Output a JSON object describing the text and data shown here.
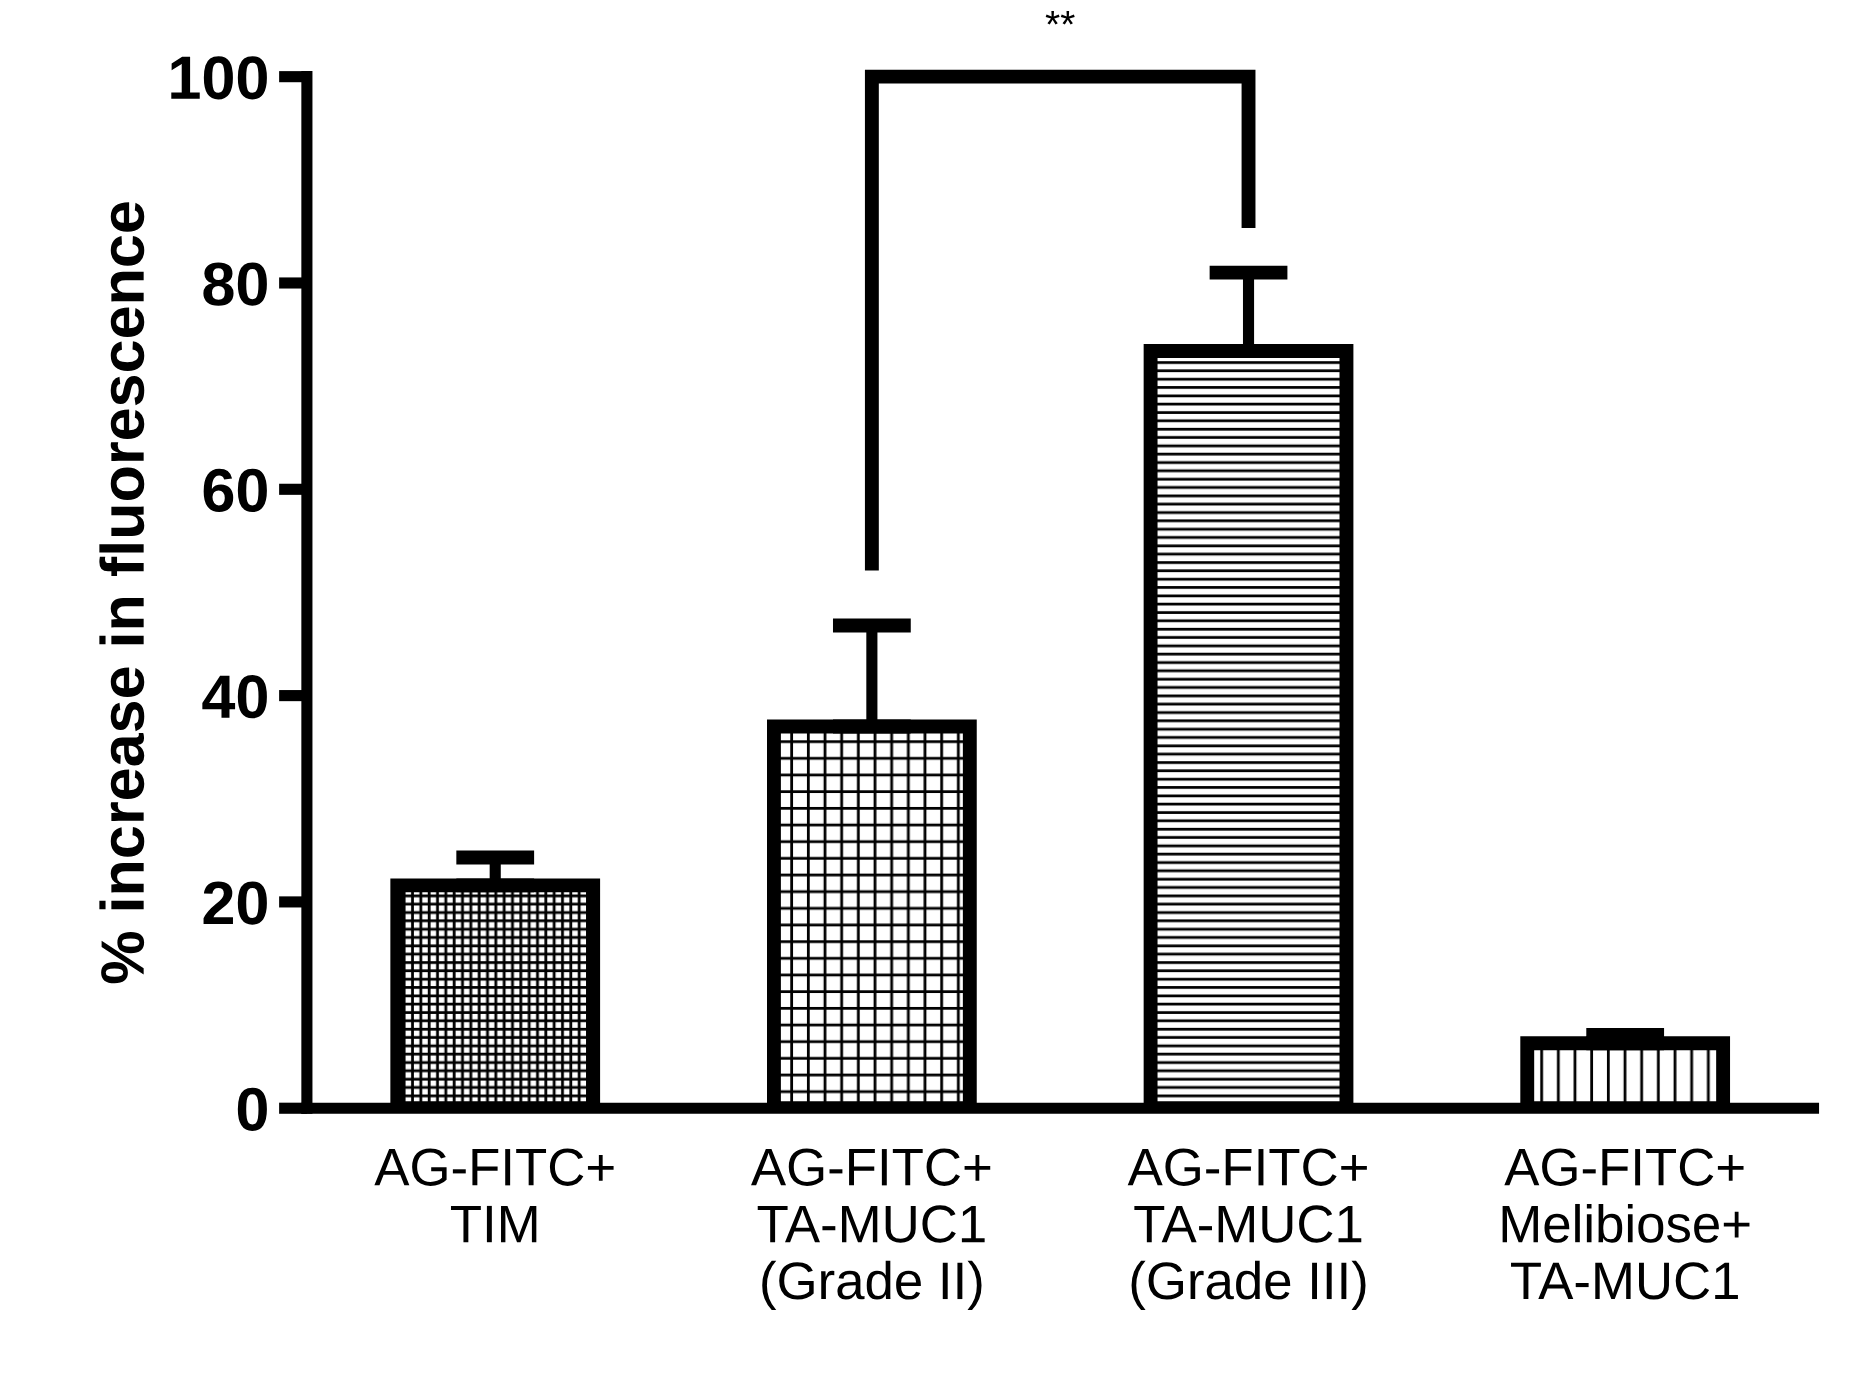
{
  "chart_data": {
    "type": "bar",
    "ylabel": "% increase in fluorescence",
    "categories": [
      "AG-FITC+\nTIM",
      "AG-FITC+\nTA-MUC1\n(Grade II)",
      "AG-FITC+\nTA-MUC1\n(Grade III)",
      "AG-FITC+\nMelibiose+\nTA-MUC1"
    ],
    "values": [
      21.6,
      37.0,
      73.4,
      6.3
    ],
    "errors": [
      2.7,
      9.8,
      7.6,
      0.8
    ],
    "color": "#000000",
    "ylim": [
      0,
      100
    ],
    "yticks": [
      0,
      20,
      40,
      60,
      80,
      100
    ],
    "grid": false,
    "annotations": [
      "**"
    ]
  }
}
